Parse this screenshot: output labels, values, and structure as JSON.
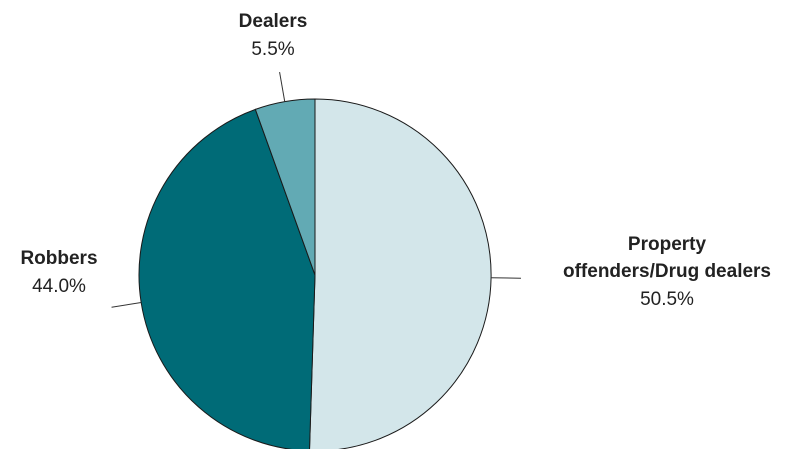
{
  "chart_data": {
    "type": "pie",
    "slices": [
      {
        "label_lines": [
          "Property",
          "offenders/Drug dealers"
        ],
        "value": 50.5,
        "value_label": "50.5%",
        "color": "#d3e6ea"
      },
      {
        "label_lines": [
          "Robbers"
        ],
        "value": 44.0,
        "value_label": "44.0%",
        "color": "#006b77"
      },
      {
        "label_lines": [
          "Dealers"
        ],
        "value": 5.5,
        "value_label": "5.5%",
        "color": "#62aab4"
      }
    ],
    "start": "12 o'clock",
    "direction": "clockwise",
    "legend": "none",
    "labels": "outside with leader lines"
  }
}
